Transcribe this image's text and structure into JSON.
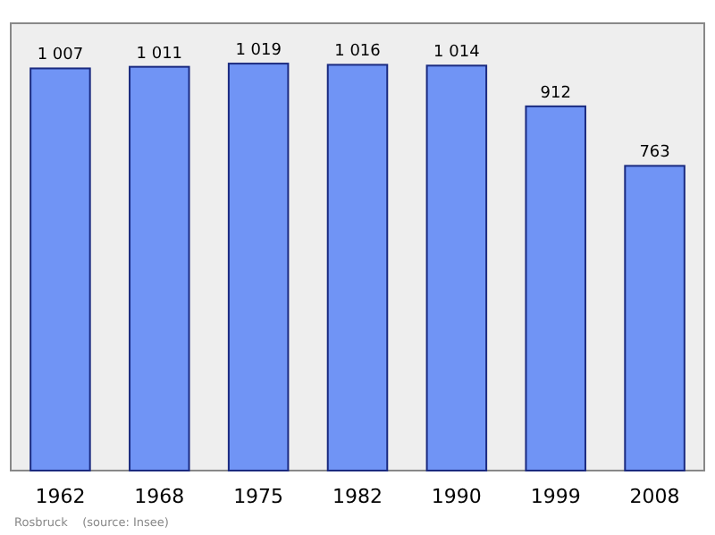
{
  "chart_data": {
    "type": "bar",
    "categories": [
      "1962",
      "1968",
      "1975",
      "1982",
      "1990",
      "1999",
      "2008"
    ],
    "values": [
      1007,
      1011,
      1019,
      1016,
      1014,
      912,
      763
    ],
    "value_labels": [
      "1 007",
      "1 011",
      "1 019",
      "1 016",
      "1 014",
      "912",
      "763"
    ],
    "color": "#7094f5",
    "ylim": [
      0,
      1120
    ],
    "annotations": [
      "Rosbruck    (source: Insee)"
    ]
  }
}
